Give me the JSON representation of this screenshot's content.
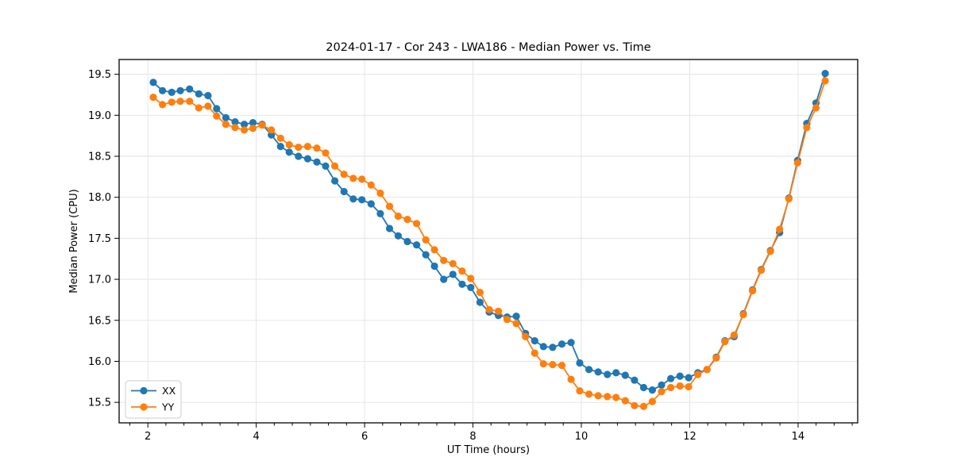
{
  "chart_data": {
    "type": "line",
    "title": "2024-01-17 - Cor 243 - LWA186 - Median Power vs. Time",
    "xlabel": "UT Time (hours)",
    "ylabel": "Median Power (CPU)",
    "xlim": [
      1.47,
      15.1
    ],
    "ylim": [
      15.25,
      19.68
    ],
    "xticks": [
      2,
      4,
      6,
      8,
      10,
      12,
      14
    ],
    "yticks": [
      15.5,
      16.0,
      16.5,
      17.0,
      17.5,
      18.0,
      18.5,
      19.0,
      19.5
    ],
    "x_minor_tick_step": 0.3333,
    "grid": true,
    "legend_position": "lower left",
    "x": [
      2.1,
      2.27,
      2.44,
      2.6,
      2.77,
      2.94,
      3.11,
      3.27,
      3.44,
      3.61,
      3.78,
      3.94,
      4.11,
      4.28,
      4.45,
      4.61,
      4.78,
      4.95,
      5.12,
      5.28,
      5.45,
      5.62,
      5.79,
      5.95,
      6.12,
      6.29,
      6.46,
      6.62,
      6.79,
      6.96,
      7.13,
      7.29,
      7.46,
      7.63,
      7.8,
      7.96,
      8.13,
      8.3,
      8.47,
      8.63,
      8.8,
      8.97,
      9.14,
      9.3,
      9.47,
      9.64,
      9.81,
      9.97,
      10.14,
      10.31,
      10.48,
      10.64,
      10.81,
      10.98,
      11.15,
      11.31,
      11.48,
      11.65,
      11.82,
      11.98,
      12.15,
      12.32,
      12.49,
      12.65,
      12.82,
      12.99,
      13.16,
      13.32,
      13.49,
      13.66,
      13.83,
      13.99,
      14.16,
      14.33,
      14.5
    ],
    "series": [
      {
        "name": "XX",
        "color": "#1f77b4",
        "values": [
          19.4,
          19.3,
          19.28,
          19.3,
          19.32,
          19.26,
          19.24,
          19.08,
          18.97,
          18.92,
          18.89,
          18.91,
          18.89,
          18.76,
          18.62,
          18.55,
          18.5,
          18.47,
          18.43,
          18.38,
          18.2,
          18.07,
          17.98,
          17.97,
          17.92,
          17.8,
          17.62,
          17.53,
          17.46,
          17.42,
          17.3,
          17.16,
          17.0,
          17.06,
          16.94,
          16.9,
          16.72,
          16.6,
          16.56,
          16.54,
          16.55,
          16.34,
          16.25,
          16.18,
          16.17,
          16.21,
          16.23,
          15.98,
          15.9,
          15.87,
          15.84,
          15.86,
          15.83,
          15.77,
          15.68,
          15.65,
          15.71,
          15.79,
          15.82,
          15.8,
          15.86,
          15.9,
          16.05,
          16.25,
          16.3,
          16.58,
          16.87,
          17.12,
          17.35,
          17.57,
          17.99,
          18.45,
          18.9,
          19.15,
          19.51
        ]
      },
      {
        "name": "YY",
        "color": "#ff7f0e",
        "values": [
          19.22,
          19.13,
          19.16,
          19.17,
          19.17,
          19.09,
          19.11,
          18.99,
          18.89,
          18.85,
          18.82,
          18.84,
          18.88,
          18.82,
          18.72,
          18.64,
          18.61,
          18.62,
          18.6,
          18.54,
          18.38,
          18.28,
          18.23,
          18.22,
          18.15,
          18.05,
          17.89,
          17.77,
          17.73,
          17.68,
          17.48,
          17.36,
          17.23,
          17.19,
          17.1,
          17.01,
          16.84,
          16.63,
          16.61,
          16.51,
          16.46,
          16.3,
          16.1,
          15.97,
          15.96,
          15.95,
          15.78,
          15.64,
          15.6,
          15.58,
          15.57,
          15.56,
          15.52,
          15.46,
          15.45,
          15.51,
          15.63,
          15.68,
          15.7,
          15.69,
          15.84,
          15.9,
          16.04,
          16.24,
          16.32,
          16.57,
          16.86,
          17.11,
          17.34,
          17.61,
          17.98,
          18.42,
          18.85,
          19.09,
          19.42
        ]
      }
    ]
  }
}
